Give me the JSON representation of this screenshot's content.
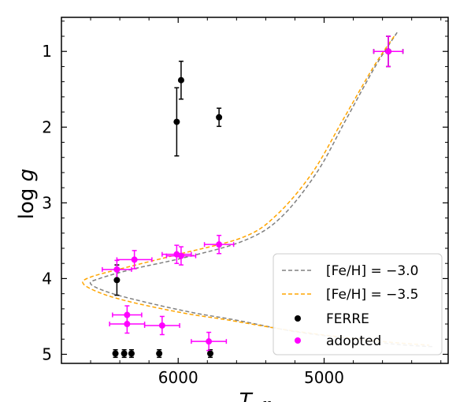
{
  "chart_data": {
    "type": "scatter",
    "title": "",
    "xlabel": "T",
    "xlabel_sub": "eff",
    "ylabel_main": "log",
    "ylabel_var": "g",
    "xlim": [
      6800,
      4150
    ],
    "ylim": [
      5.12,
      0.55
    ],
    "x_reversed": true,
    "y_reversed": true,
    "xticks": [
      6000,
      5000
    ],
    "yticks": [
      1,
      2,
      3,
      4,
      5
    ],
    "legend_position": "lower right",
    "legend": [
      {
        "label": "[Fe/H] = −3.0",
        "kind": "dashed-line",
        "color": "#808080"
      },
      {
        "label": "[Fe/H] = −3.5",
        "kind": "dashed-line",
        "color": "#FFA500"
      },
      {
        "label": "FERRE",
        "kind": "marker",
        "color": "#000000"
      },
      {
        "label": "adopted",
        "kind": "marker",
        "color": "#FF00FF"
      }
    ],
    "series": [
      {
        "name": "[Fe/H] = −3.0",
        "type": "line",
        "style": "dashed",
        "color": "#808080",
        "points": [
          [
            4500,
            0.75
          ],
          [
            4650,
            1.2
          ],
          [
            4850,
            1.9
          ],
          [
            5050,
            2.6
          ],
          [
            5300,
            3.2
          ],
          [
            5550,
            3.5
          ],
          [
            5950,
            3.72
          ],
          [
            6300,
            3.87
          ],
          [
            6540,
            4.0
          ],
          [
            6600,
            4.07
          ],
          [
            6480,
            4.18
          ],
          [
            6250,
            4.3
          ],
          [
            5900,
            4.45
          ],
          [
            5600,
            4.55
          ],
          [
            5200,
            4.7
          ],
          [
            4800,
            4.8
          ],
          [
            4500,
            4.87
          ],
          [
            4250,
            4.9
          ]
        ]
      },
      {
        "name": "[Fe/H] = −3.5",
        "type": "line",
        "style": "dashed",
        "color": "#FFA500",
        "points": [
          [
            4520,
            0.8
          ],
          [
            4660,
            1.2
          ],
          [
            4870,
            1.9
          ],
          [
            5080,
            2.6
          ],
          [
            5320,
            3.15
          ],
          [
            5550,
            3.45
          ],
          [
            6000,
            3.68
          ],
          [
            6350,
            3.85
          ],
          [
            6600,
            3.98
          ],
          [
            6650,
            4.07
          ],
          [
            6520,
            4.2
          ],
          [
            6300,
            4.32
          ],
          [
            5950,
            4.46
          ],
          [
            5650,
            4.55
          ],
          [
            5250,
            4.68
          ],
          [
            4850,
            4.78
          ],
          [
            4550,
            4.84
          ],
          [
            4280,
            4.88
          ]
        ]
      },
      {
        "name": "FERRE",
        "type": "scatter",
        "color": "#000000",
        "points": [
          {
            "x": 4560,
            "y": 1.0,
            "xerr": 100,
            "yerr": 0.2
          },
          {
            "x": 5980,
            "y": 1.38,
            "xerr": 0,
            "yerr": 0.25
          },
          {
            "x": 6010,
            "y": 1.93,
            "xerr": 0,
            "yerr": 0.45
          },
          {
            "x": 5720,
            "y": 1.87,
            "xerr": 0,
            "yerr": 0.12
          },
          {
            "x": 6420,
            "y": 4.02,
            "xerr": 0,
            "yerr": 0.2
          },
          {
            "x": 6430,
            "y": 4.99,
            "xerr": 0,
            "yerr": 0.05
          },
          {
            "x": 6370,
            "y": 4.99,
            "xerr": 0,
            "yerr": 0.05
          },
          {
            "x": 6320,
            "y": 4.99,
            "xerr": 0,
            "yerr": 0.05
          },
          {
            "x": 6130,
            "y": 4.99,
            "xerr": 0,
            "yerr": 0.05
          },
          {
            "x": 5780,
            "y": 4.99,
            "xerr": 0,
            "yerr": 0.05
          }
        ]
      },
      {
        "name": "adopted",
        "type": "scatter",
        "color": "#FF00FF",
        "points": [
          {
            "x": 4560,
            "y": 1.0,
            "xerr": 100,
            "yerr": 0.2
          },
          {
            "x": 5720,
            "y": 3.55,
            "xerr": 100,
            "yerr": 0.12
          },
          {
            "x": 5980,
            "y": 3.7,
            "xerr": 100,
            "yerr": 0.12
          },
          {
            "x": 6010,
            "y": 3.68,
            "xerr": 100,
            "yerr": 0.12
          },
          {
            "x": 6300,
            "y": 3.75,
            "xerr": 120,
            "yerr": 0.12
          },
          {
            "x": 6420,
            "y": 3.88,
            "xerr": 100,
            "yerr": 0.12
          },
          {
            "x": 6350,
            "y": 4.48,
            "xerr": 100,
            "yerr": 0.12
          },
          {
            "x": 6350,
            "y": 4.6,
            "xerr": 120,
            "yerr": 0.12
          },
          {
            "x": 6110,
            "y": 4.62,
            "xerr": 120,
            "yerr": 0.12
          },
          {
            "x": 5790,
            "y": 4.83,
            "xerr": 120,
            "yerr": 0.12
          }
        ]
      }
    ]
  }
}
